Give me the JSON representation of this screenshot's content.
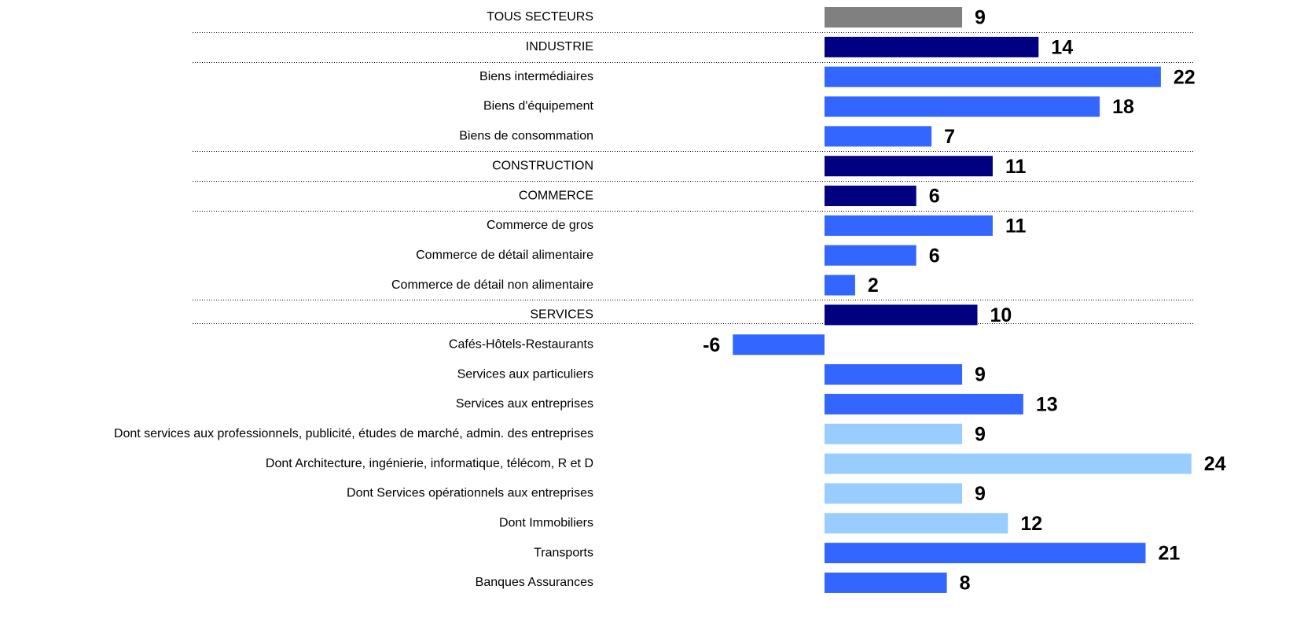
{
  "chart_data": {
    "type": "barh",
    "categories": [
      "TOUS SECTEURS",
      "INDUSTRIE",
      "Biens intermédiaires",
      "Biens d'équipement",
      "Biens de consommation",
      "CONSTRUCTION",
      "COMMERCE",
      "Commerce de gros",
      "Commerce de détail alimentaire",
      "Commerce de détail non alimentaire",
      "SERVICES",
      "Cafés-Hôtels-Restaurants",
      "Services aux particuliers",
      "Services aux entreprises",
      "Dont services aux professionnels, publicité, études de marché, admin. des entreprises",
      "Dont Architecture, ingénierie, informatique, télécom, R et D",
      "Dont Services opérationnels aux entreprises",
      "Dont Immobiliers",
      "Transports",
      "Banques Assurances"
    ],
    "values": [
      9,
      14,
      22,
      18,
      7,
      11,
      6,
      11,
      6,
      2,
      10,
      -6,
      9,
      13,
      9,
      24,
      9,
      12,
      21,
      8
    ],
    "colors": [
      "#808080",
      "#000080",
      "#3366ff",
      "#3366ff",
      "#3366ff",
      "#000080",
      "#000080",
      "#3366ff",
      "#3366ff",
      "#3366ff",
      "#000080",
      "#3366ff",
      "#3366ff",
      "#3366ff",
      "#99ccff",
      "#99ccff",
      "#99ccff",
      "#99ccff",
      "#3366ff",
      "#3366ff"
    ]
  }
}
